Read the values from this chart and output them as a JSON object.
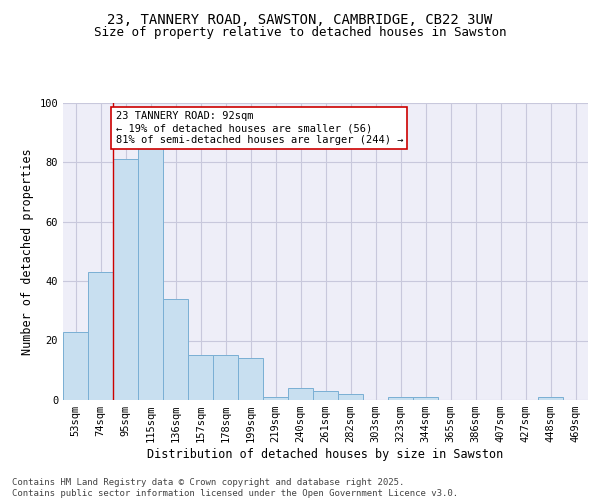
{
  "title_line1": "23, TANNERY ROAD, SAWSTON, CAMBRIDGE, CB22 3UW",
  "title_line2": "Size of property relative to detached houses in Sawston",
  "xlabel": "Distribution of detached houses by size in Sawston",
  "ylabel": "Number of detached properties",
  "categories": [
    "53sqm",
    "74sqm",
    "95sqm",
    "115sqm",
    "136sqm",
    "157sqm",
    "178sqm",
    "199sqm",
    "219sqm",
    "240sqm",
    "261sqm",
    "282sqm",
    "303sqm",
    "323sqm",
    "344sqm",
    "365sqm",
    "386sqm",
    "407sqm",
    "427sqm",
    "448sqm",
    "469sqm"
  ],
  "values": [
    23,
    43,
    81,
    85,
    34,
    15,
    15,
    14,
    1,
    4,
    3,
    2,
    0,
    1,
    1,
    0,
    0,
    0,
    0,
    1,
    0
  ],
  "bar_color": "#c8dff0",
  "bar_edge_color": "#7aafd4",
  "vline_color": "#cc0000",
  "vline_index": 2,
  "annotation_text": "23 TANNERY ROAD: 92sqm\n← 19% of detached houses are smaller (56)\n81% of semi-detached houses are larger (244) →",
  "annotation_box_color": "#ffffff",
  "annotation_box_edge_color": "#cc0000",
  "ylim": [
    0,
    100
  ],
  "yticks": [
    0,
    20,
    40,
    60,
    80,
    100
  ],
  "grid_color": "#c8c8dc",
  "background_color": "#eeeef8",
  "footer_text": "Contains HM Land Registry data © Crown copyright and database right 2025.\nContains public sector information licensed under the Open Government Licence v3.0.",
  "title_fontsize": 10,
  "subtitle_fontsize": 9,
  "label_fontsize": 8.5,
  "tick_fontsize": 7.5,
  "annotation_fontsize": 7.5,
  "footer_fontsize": 6.5
}
